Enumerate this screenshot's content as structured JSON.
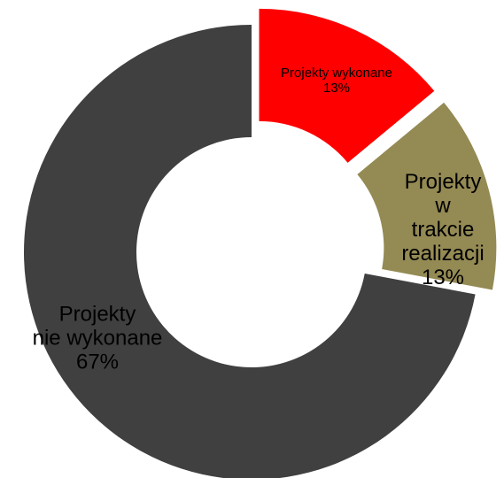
{
  "chart_data": {
    "type": "donut",
    "categories": [
      "Projekty wykonane",
      "Projekty\nw trakcie\nrealizacji",
      "Projekty\nnie wykonane"
    ],
    "values": [
      13,
      13,
      67
    ],
    "value_labels": [
      "13%",
      "13%",
      "67%"
    ],
    "colors": [
      "#ff0000",
      "#948a54",
      "#404040"
    ]
  }
}
